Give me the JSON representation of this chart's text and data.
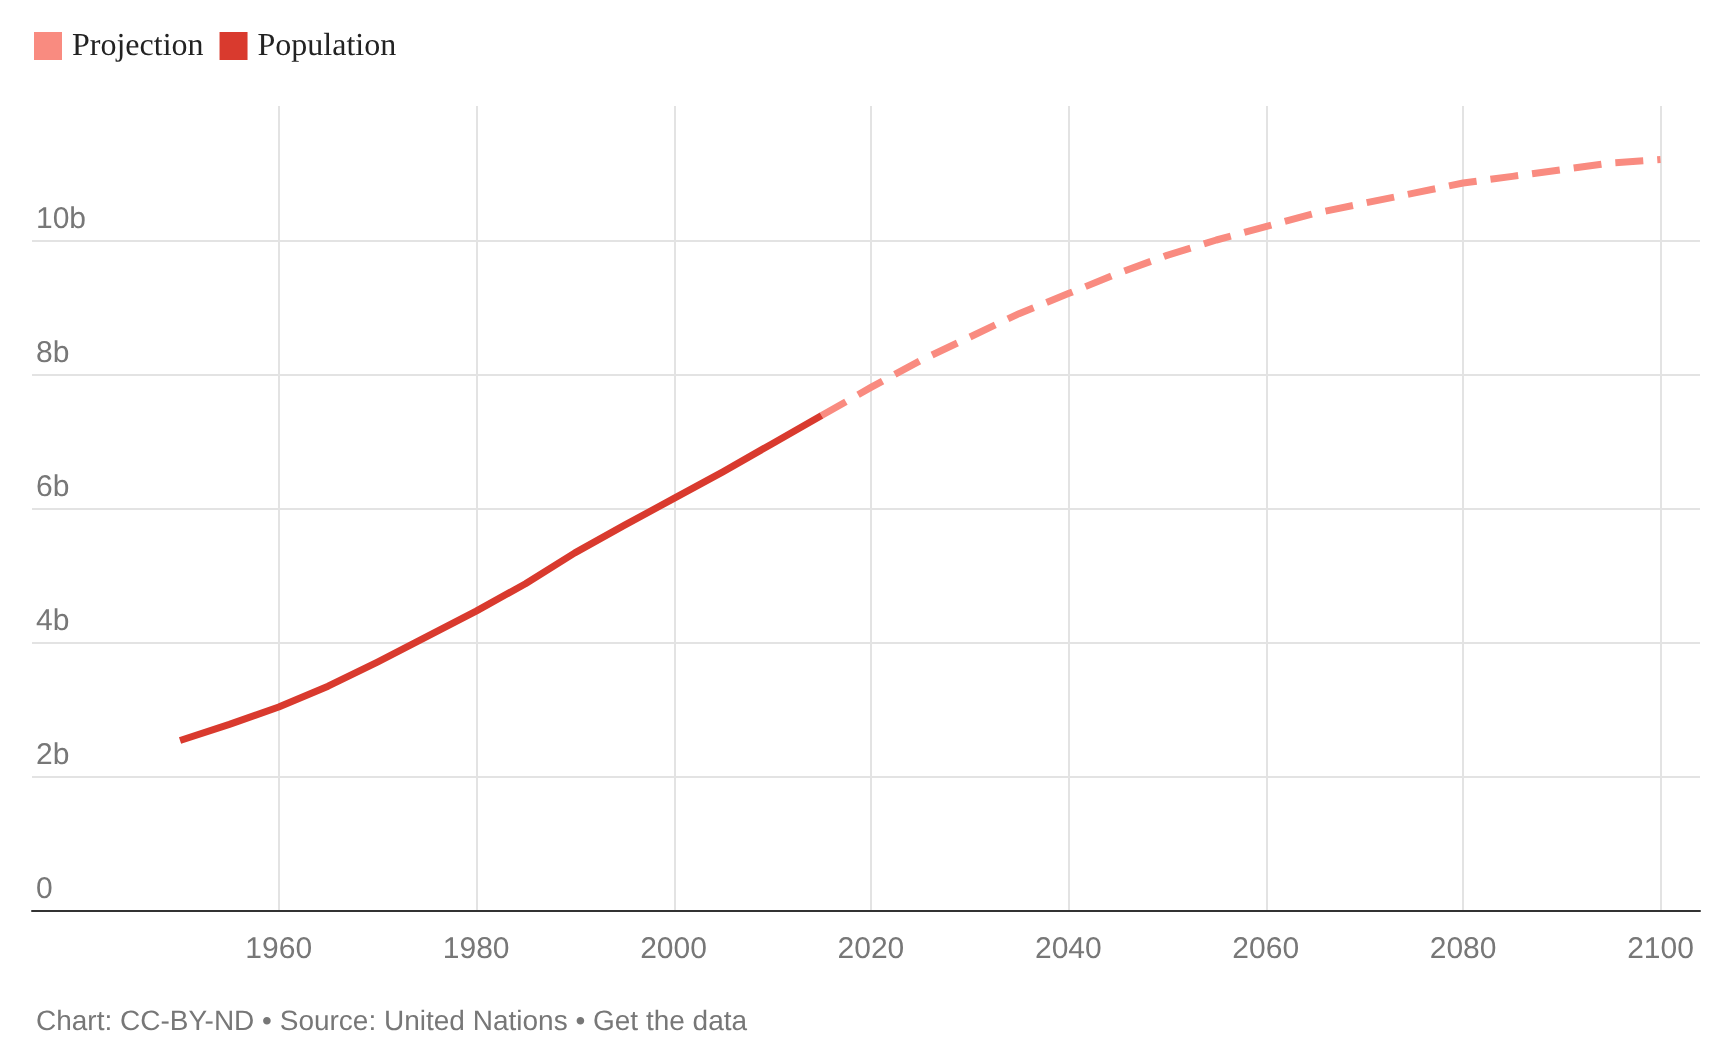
{
  "chart_data": {
    "type": "line",
    "x": [
      1950,
      1955,
      1960,
      1965,
      1970,
      1975,
      1980,
      1985,
      1990,
      1995,
      2000,
      2005,
      2010,
      2015
    ],
    "series": [
      {
        "name": "Projection",
        "color": "#f98b80",
        "line_style": "dashed",
        "x": [
          2015,
          2020,
          2025,
          2030,
          2035,
          2040,
          2045,
          2050,
          2055,
          2060,
          2065,
          2070,
          2075,
          2080,
          2085,
          2090,
          2095,
          2100
        ],
        "values": [
          7.38,
          7.8,
          8.2,
          8.55,
          8.9,
          9.2,
          9.5,
          9.77,
          10.0,
          10.2,
          10.4,
          10.55,
          10.7,
          10.85,
          10.95,
          11.05,
          11.15,
          11.2
        ]
      },
      {
        "name": "Population",
        "color": "#d93a2e",
        "line_style": "solid",
        "values": [
          2.53,
          2.77,
          3.03,
          3.34,
          3.7,
          4.08,
          4.46,
          4.87,
          5.33,
          5.74,
          6.14,
          6.54,
          6.96,
          7.38
        ]
      }
    ],
    "xlim": [
      1935,
      2104
    ],
    "xticks": [
      1960,
      1980,
      2000,
      2020,
      2040,
      2060,
      2080,
      2100
    ],
    "ylim": [
      0,
      12
    ],
    "yticks": [
      0,
      {
        "value": 2,
        "label": "2b"
      },
      {
        "value": 4,
        "label": "4b"
      },
      {
        "value": 6,
        "label": "6b"
      },
      {
        "value": 8,
        "label": "8b"
      },
      {
        "value": 10,
        "label": "10b"
      }
    ],
    "grid": true,
    "legend": "top left",
    "marker": "none",
    "annotations": [
      "Chart: CC-BY-ND • Source: United Nations • Get the data"
    ]
  }
}
